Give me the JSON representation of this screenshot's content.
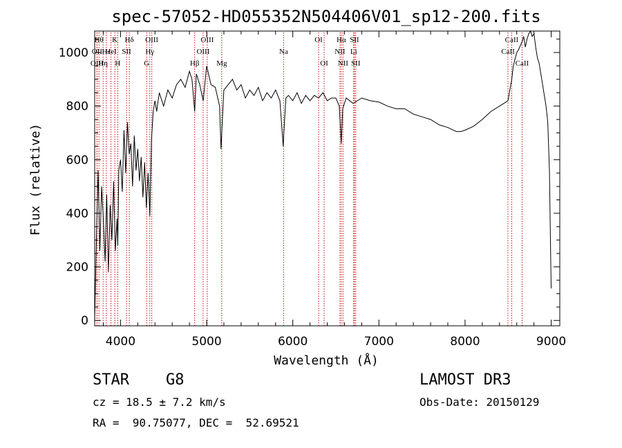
{
  "chart_data": {
    "type": "line",
    "title": "spec-57052-HD055352N504406V01_sp12-200.fits",
    "xlabel": "Wavelength (Å)",
    "ylabel": "Flux (relative)",
    "xlim": [
      3700,
      9100
    ],
    "ylim": [
      -20,
      1080
    ],
    "x_ticks": [
      4000,
      5000,
      6000,
      7000,
      8000,
      9000
    ],
    "y_ticks": [
      0,
      200,
      400,
      600,
      800,
      1000
    ],
    "grid": false,
    "series": [
      {
        "x": [
          3700,
          3720,
          3740,
          3760,
          3780,
          3800,
          3820,
          3840,
          3860,
          3880,
          3900,
          3920,
          3940,
          3960,
          3968,
          3980,
          4000,
          4020,
          4040,
          4060,
          4080,
          4100,
          4120,
          4140,
          4160,
          4180,
          4200,
          4220,
          4240,
          4260,
          4280,
          4300,
          4320,
          4340,
          4360,
          4380,
          4400,
          4420,
          4450,
          4500,
          4550,
          4600,
          4650,
          4700,
          4750,
          4800,
          4830,
          4861,
          4880,
          4920,
          4960,
          5000,
          5050,
          5100,
          5150,
          5167,
          5183,
          5200,
          5250,
          5300,
          5350,
          5400,
          5450,
          5500,
          5550,
          5600,
          5650,
          5700,
          5750,
          5800,
          5850,
          5889,
          5896,
          5920,
          5950,
          6000,
          6050,
          6100,
          6150,
          6200,
          6250,
          6300,
          6350,
          6400,
          6450,
          6500,
          6540,
          6563,
          6580,
          6620,
          6700,
          6800,
          6900,
          7000,
          7100,
          7200,
          7300,
          7400,
          7500,
          7600,
          7700,
          7800,
          7900,
          7950,
          8000,
          8100,
          8200,
          8300,
          8400,
          8450,
          8498,
          8520,
          8542,
          8560,
          8600,
          8620,
          8662,
          8680,
          8700,
          8720,
          8740,
          8760,
          8780,
          8800,
          8820,
          8840,
          8860,
          8880,
          8900,
          8920,
          8940,
          8960,
          8980,
          9000
        ],
        "y": [
          0,
          300,
          560,
          260,
          500,
          380,
          220,
          470,
          180,
          430,
          300,
          520,
          260,
          380,
          280,
          560,
          600,
          480,
          710,
          550,
          740,
          620,
          660,
          500,
          690,
          560,
          640,
          520,
          610,
          460,
          590,
          420,
          550,
          390,
          680,
          780,
          820,
          780,
          850,
          800,
          860,
          830,
          880,
          900,
          870,
          930,
          900,
          780,
          920,
          880,
          820,
          950,
          880,
          870,
          800,
          640,
          750,
          860,
          880,
          900,
          860,
          880,
          830,
          860,
          840,
          870,
          820,
          850,
          830,
          860,
          820,
          650,
          700,
          830,
          840,
          820,
          850,
          810,
          840,
          820,
          840,
          830,
          850,
          820,
          830,
          830,
          800,
          660,
          790,
          830,
          810,
          830,
          820,
          815,
          800,
          790,
          790,
          770,
          760,
          750,
          730,
          720,
          705,
          705,
          710,
          725,
          750,
          780,
          800,
          810,
          820,
          860,
          900,
          950,
          1000,
          1010,
          1040,
          1060,
          1020,
          1050,
          1070,
          1080,
          1060,
          1070,
          1020,
          980,
          960,
          920,
          880,
          840,
          800,
          740,
          560,
          120
        ]
      }
    ],
    "lines": [
      {
        "x": 3750,
        "label": "Hθ",
        "row": 0
      },
      {
        "x": 3727,
        "label": "OII",
        "row": 1
      },
      {
        "x": 3727,
        "label": "OIII",
        "row": 2
      },
      {
        "x": 3798,
        "label": "Hη",
        "row": 2
      },
      {
        "x": 3835,
        "label": "Hε",
        "row": 1
      },
      {
        "x": 3889,
        "label": "HeI",
        "row": 1
      },
      {
        "x": 3934,
        "label": "K",
        "row": 0
      },
      {
        "x": 3968,
        "label": "H",
        "row": 2
      },
      {
        "x": 4070,
        "label": "SII",
        "row": 1
      },
      {
        "x": 4102,
        "label": "Hδ",
        "row": 0
      },
      {
        "x": 4304,
        "label": "G",
        "row": 2
      },
      {
        "x": 4340,
        "label": "Hγ",
        "row": 1
      },
      {
        "x": 4363,
        "label": "OIII",
        "row": 0
      },
      {
        "x": 4861,
        "label": "Hβ",
        "row": 2
      },
      {
        "x": 4959,
        "label": "OIII",
        "row": 1
      },
      {
        "x": 5007,
        "label": "OIII",
        "row": 0
      },
      {
        "x": 5175,
        "label": "Mg",
        "row": 2
      },
      {
        "x": 5893,
        "label": "Na",
        "row": 1
      },
      {
        "x": 6300,
        "label": "OI",
        "row": 0
      },
      {
        "x": 6364,
        "label": "OI",
        "row": 2
      },
      {
        "x": 6548,
        "label": "NII",
        "row": 1
      },
      {
        "x": 6563,
        "label": "Hα",
        "row": 0
      },
      {
        "x": 6583,
        "label": "NII",
        "row": 2
      },
      {
        "x": 6707,
        "label": "Li",
        "row": 1
      },
      {
        "x": 6716,
        "label": "SII",
        "row": 0
      },
      {
        "x": 6731,
        "label": "SII",
        "row": 2
      },
      {
        "x": 8498,
        "label": "CaII",
        "row": 1
      },
      {
        "x": 8542,
        "label": "CaII",
        "row": 0
      },
      {
        "x": 8662,
        "label": "CaII",
        "row": 2
      }
    ]
  },
  "info": {
    "object_class": "STAR    G8",
    "survey": "LAMOST DR3",
    "cz": "cz = 18.5 ± 7.2 km/s",
    "obs_date": "Obs-Date: 20150129",
    "radec": "RA =  90.75077, DEC =  52.69521"
  },
  "colors": {
    "spectrum": "#000000",
    "line_markers": "#cc0000",
    "axes": "#000000"
  }
}
